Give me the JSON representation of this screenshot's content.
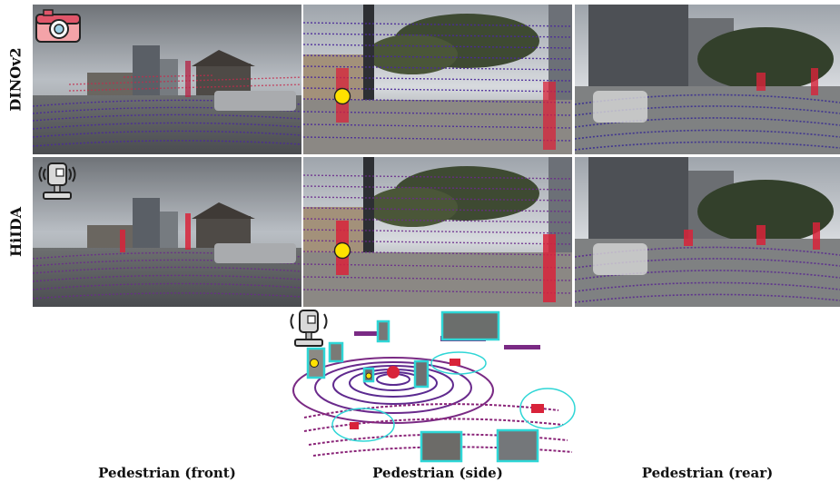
{
  "rows": [
    {
      "label": "DINOv2",
      "icon": "camera-icon"
    },
    {
      "label": "HiIDA",
      "icon": "lidar-sensor-icon"
    }
  ],
  "columns": [
    {
      "caption": "Pedestrian (front)"
    },
    {
      "caption": "Pedestrian (side)"
    },
    {
      "caption": "Pedestrian (rear)"
    }
  ],
  "colors": {
    "point_low": "#3b1f8a",
    "point_high": "#d8233a",
    "highlight_box": "#2fd6d6",
    "marker": "#ffe100"
  }
}
